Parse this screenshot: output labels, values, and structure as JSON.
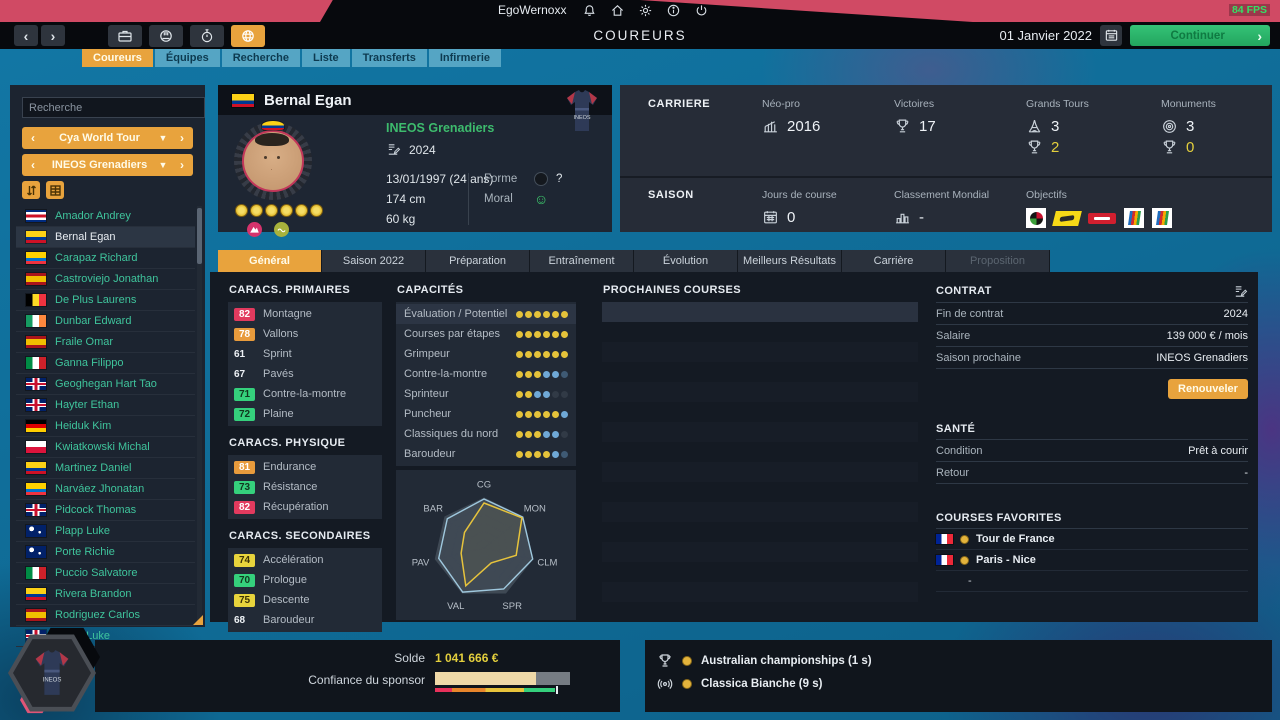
{
  "colors": {
    "accent_orange": "#e8a33d",
    "bg_blue": "#0f6b96",
    "pink": "#d04a64",
    "green_button": "#23a55e",
    "badge_red": "#e23a5e",
    "badge_orange": "#e89b3c",
    "badge_green": "#35d07c",
    "badge_yellow": "#e8d43c",
    "dot_yellow": "#e4c23a",
    "dot_blue": "#6fa8d6",
    "rider_name_teal": "#3fc49c",
    "gold_text": "#e3cf3d"
  },
  "topbar": {
    "username": "EgoWernoxx",
    "fps": "84 FPS"
  },
  "navbar": {
    "title": "COUREURS",
    "date": "01 Janvier 2022",
    "continue_label": "Continuer",
    "back": "‹",
    "forward": "›"
  },
  "module_tabs": [
    {
      "slug": "coureurs",
      "label": "Coureurs",
      "active": true
    },
    {
      "slug": "equipes",
      "label": "Équipes",
      "active": false
    },
    {
      "slug": "recherche",
      "label": "Recherche",
      "active": false
    },
    {
      "slug": "liste",
      "label": "Liste",
      "active": false
    },
    {
      "slug": "transferts",
      "label": "Transferts",
      "active": false
    },
    {
      "slug": "infirmerie",
      "label": "Infirmerie",
      "active": false
    }
  ],
  "sidebar": {
    "search_placeholder": "Recherche",
    "filter1": "Cya World Tour",
    "filter2": "INEOS Grenadiers",
    "riders": [
      {
        "flag": "cri",
        "name": "Amador Andrey"
      },
      {
        "flag": "col",
        "name": "Bernal Egan",
        "selected": true
      },
      {
        "flag": "ecu",
        "name": "Carapaz Richard"
      },
      {
        "flag": "esp",
        "name": "Castroviejo Jonathan"
      },
      {
        "flag": "bel",
        "name": "De Plus Laurens"
      },
      {
        "flag": "irl",
        "name": "Dunbar Edward"
      },
      {
        "flag": "esp",
        "name": "Fraile Omar"
      },
      {
        "flag": "ita",
        "name": "Ganna Filippo"
      },
      {
        "flag": "gbr",
        "name": "Geoghegan Hart Tao"
      },
      {
        "flag": "gbr",
        "name": "Hayter Ethan"
      },
      {
        "flag": "ger",
        "name": "Heiduk Kim"
      },
      {
        "flag": "pol",
        "name": "Kwiatkowski Michal"
      },
      {
        "flag": "col",
        "name": "Martinez Daniel"
      },
      {
        "flag": "ecu",
        "name": "Narváez Jhonatan"
      },
      {
        "flag": "gbr",
        "name": "Pidcock Thomas"
      },
      {
        "flag": "aus",
        "name": "Plapp Luke"
      },
      {
        "flag": "aus",
        "name": "Porte Richie"
      },
      {
        "flag": "ita",
        "name": "Puccio Salvatore"
      },
      {
        "flag": "col",
        "name": "Rivera Brandon"
      },
      {
        "flag": "esp",
        "name": "Rodriguez Carlos"
      },
      {
        "flag": "gbr",
        "name": "Rowe Luke"
      }
    ]
  },
  "profile": {
    "flag": "col",
    "name": "Bernal Egan",
    "team": "INEOS Grenadiers",
    "contract_year": "2024",
    "birth": "13/01/1997 (24 ans)",
    "height": "174 cm",
    "weight": "60 kg",
    "forme_label": "Forme",
    "forme_value": "?",
    "moral_label": "Moral",
    "moral_icon": "☺",
    "stars": 6,
    "jersey_text": "INEOS"
  },
  "career": {
    "title": "CARRIERE",
    "neo_pro_label": "Néo-pro",
    "neo_pro_value": "2016",
    "victories_label": "Victoires",
    "victories_value": "17",
    "grands_tours_label": "Grands Tours",
    "gt_participations": "3",
    "gt_wins": "2",
    "monuments_label": "Monuments",
    "mon_participations": "3",
    "mon_wins": "0"
  },
  "season": {
    "title": "SAISON",
    "race_days_label": "Jours de course",
    "race_days_value": "0",
    "ranking_label": "Classement Mondial",
    "ranking_value": "-",
    "objectives_label": "Objectifs"
  },
  "detail_tabs": [
    {
      "slug": "general",
      "label": "Général",
      "active": true
    },
    {
      "slug": "saison-2022",
      "label": "Saison 2022"
    },
    {
      "slug": "preparation",
      "label": "Préparation"
    },
    {
      "slug": "entrainement",
      "label": "Entraînement"
    },
    {
      "slug": "evolution",
      "label": "Évolution"
    },
    {
      "slug": "meilleurs-resultats",
      "label": "Meilleurs Résultats"
    },
    {
      "slug": "carriere",
      "label": "Carrière"
    },
    {
      "slug": "proposition",
      "label": "Proposition",
      "disabled": true
    }
  ],
  "stats_groups": [
    {
      "title": "CARACS. PRIMAIRES",
      "items": [
        {
          "value": "82",
          "label": "Montagne",
          "color": "red"
        },
        {
          "value": "78",
          "label": "Vallons",
          "color": "orange"
        },
        {
          "value": "61",
          "label": "Sprint",
          "color": "none"
        },
        {
          "value": "67",
          "label": "Pavés",
          "color": "none"
        },
        {
          "value": "71",
          "label": "Contre-la-montre",
          "color": "green"
        },
        {
          "value": "72",
          "label": "Plaine",
          "color": "green"
        }
      ]
    },
    {
      "title": "CARACS. PHYSIQUE",
      "items": [
        {
          "value": "81",
          "label": "Endurance",
          "color": "orange"
        },
        {
          "value": "73",
          "label": "Résistance",
          "color": "green"
        },
        {
          "value": "82",
          "label": "Récupération",
          "color": "red"
        }
      ]
    },
    {
      "title": "CARACS. SECONDAIRES",
      "items": [
        {
          "value": "74",
          "label": "Accélération",
          "color": "yellow"
        },
        {
          "value": "70",
          "label": "Prologue",
          "color": "green"
        },
        {
          "value": "75",
          "label": "Descente",
          "color": "yellow"
        },
        {
          "value": "68",
          "label": "Baroudeur",
          "color": "none"
        }
      ]
    }
  ],
  "capacities": {
    "title": "CAPACITÉS",
    "items": [
      {
        "label": "Évaluation / Potentiel",
        "dots": [
          "y",
          "y",
          "y",
          "y",
          "y",
          "y"
        ],
        "highlight": true
      },
      {
        "label": "Courses par étapes",
        "dots": [
          "y",
          "y",
          "y",
          "y",
          "y",
          "y"
        ]
      },
      {
        "label": "Grimpeur",
        "dots": [
          "y",
          "y",
          "y",
          "y",
          "y",
          "y"
        ]
      },
      {
        "label": "Contre-la-montre",
        "dots": [
          "y",
          "y",
          "y",
          "b",
          "b",
          "h"
        ]
      },
      {
        "label": "Sprinteur",
        "dots": [
          "y",
          "y",
          "b",
          "b",
          "e",
          "e"
        ]
      },
      {
        "label": "Puncheur",
        "dots": [
          "y",
          "y",
          "y",
          "y",
          "y",
          "b"
        ]
      },
      {
        "label": "Classiques du nord",
        "dots": [
          "y",
          "y",
          "y",
          "b",
          "b",
          "e"
        ]
      },
      {
        "label": "Baroudeur",
        "dots": [
          "y",
          "y",
          "y",
          "y",
          "b",
          "h"
        ]
      }
    ]
  },
  "radar": {
    "axes": [
      "CG",
      "MON",
      "CLM",
      "SPR",
      "VAL",
      "PAV",
      "BAR"
    ],
    "rider": [
      0.9,
      0.97,
      0.66,
      0.33,
      0.84,
      0.47,
      0.5
    ],
    "team": [
      0.98,
      0.99,
      1.0,
      0.91,
      0.98,
      0.93,
      0.94
    ]
  },
  "next_races": {
    "title": "PROCHAINES COURSES"
  },
  "contract": {
    "title": "CONTRAT",
    "rows": [
      {
        "label": "Fin de contrat",
        "value": "2024"
      },
      {
        "label": "Salaire",
        "value": "139 000 € / mois"
      },
      {
        "label": "Saison prochaine",
        "value": "INEOS Grenadiers"
      }
    ],
    "button": "Renouveler"
  },
  "health": {
    "title": "SANTÉ",
    "rows": [
      {
        "label": "Condition",
        "value": "Prêt à courir"
      },
      {
        "label": "Retour",
        "value": "-"
      }
    ]
  },
  "favorites": {
    "title": "COURSES FAVORITES",
    "rows": [
      {
        "flag": "fra",
        "name": "Tour de France"
      },
      {
        "flag": "fra",
        "name": "Paris - Nice"
      },
      {
        "name": "-"
      }
    ]
  },
  "footer": {
    "solde_label": "Solde",
    "solde_value": "1 041 666 €",
    "confidence_label": "Confiance du sponsor",
    "confidence_pct": 75,
    "events": [
      {
        "icon": "trophy",
        "name": "Australian championships (1 s)"
      },
      {
        "icon": "broadcast",
        "name": "Classica Bianche (9 s)"
      }
    ]
  }
}
